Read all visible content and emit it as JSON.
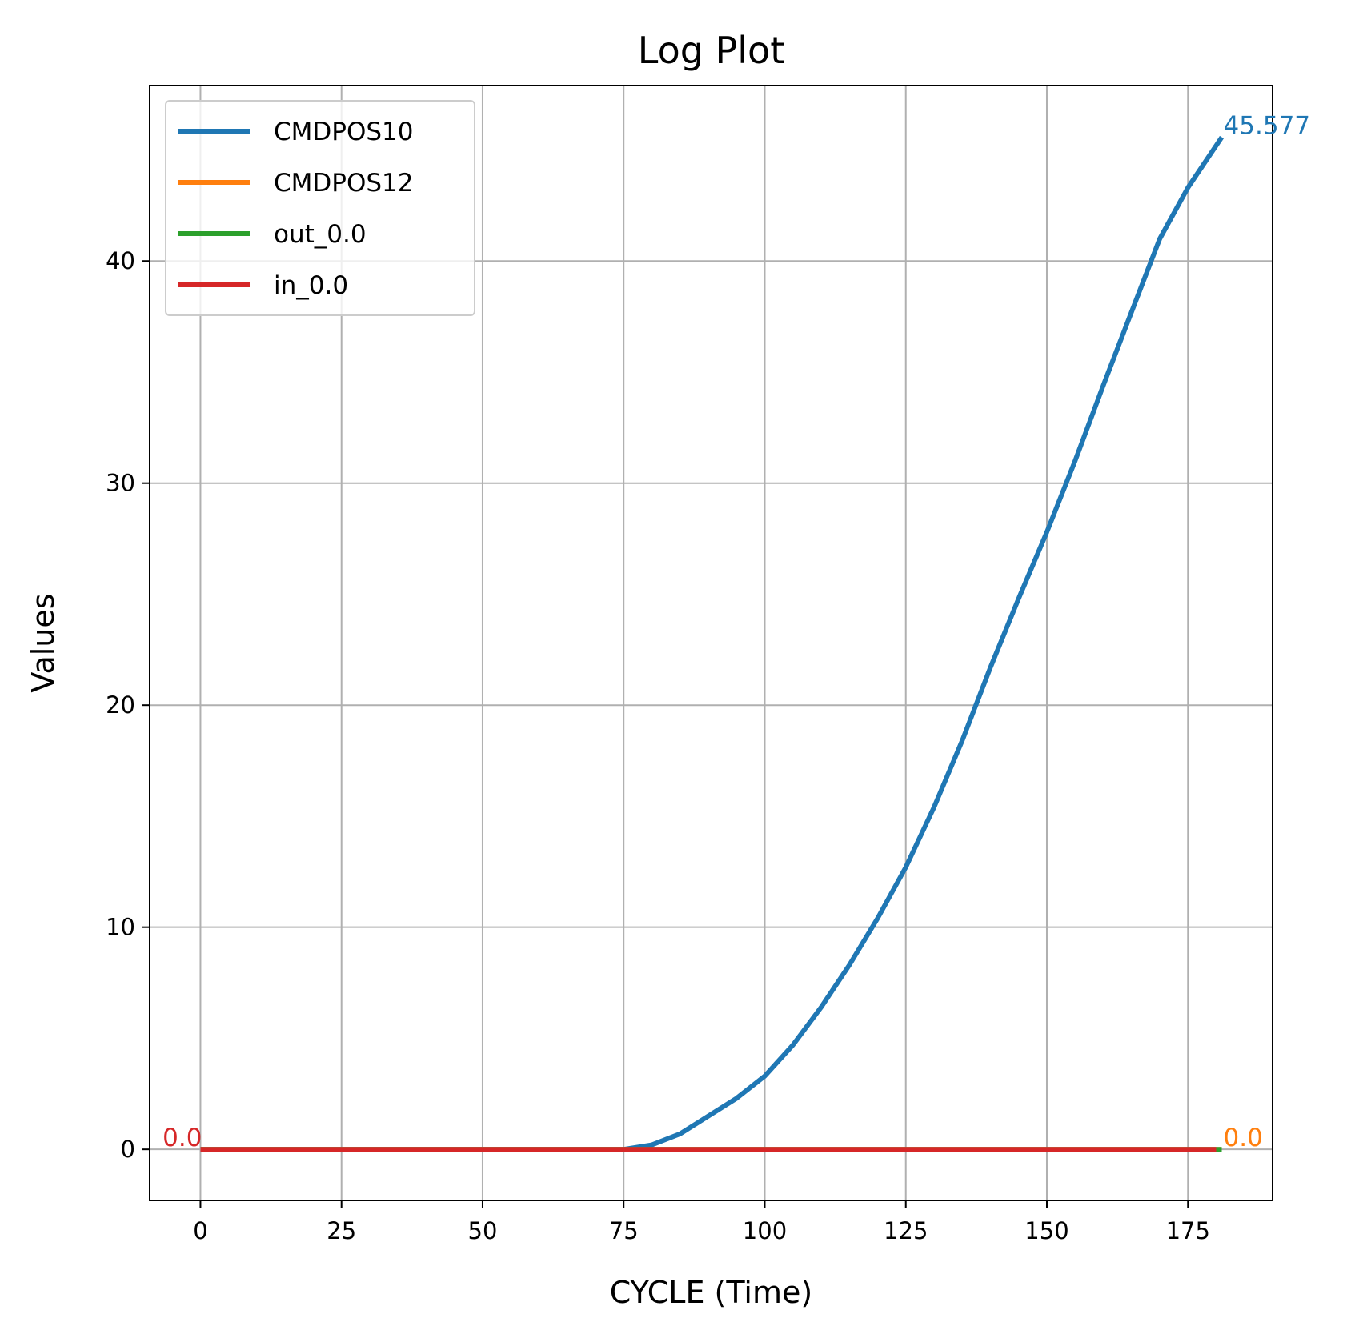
{
  "chart_data": {
    "type": "line",
    "title": "Log Plot",
    "xlabel": "CYCLE (Time)",
    "ylabel": "Values",
    "xlim": [
      -9,
      190
    ],
    "ylim": [
      -2.3,
      47.9
    ],
    "xticks": [
      0,
      25,
      50,
      75,
      100,
      125,
      150,
      175
    ],
    "yticks": [
      0,
      10,
      20,
      30,
      40
    ],
    "grid": true,
    "legend_position": "upper-left",
    "series": [
      {
        "name": "CMDPOS10",
        "color": "#1f77b4",
        "x": [
          0,
          25,
          50,
          75,
          80,
          85,
          90,
          95,
          100,
          105,
          110,
          115,
          120,
          125,
          130,
          135,
          140,
          145,
          150,
          155,
          160,
          165,
          170,
          175,
          181
        ],
        "y": [
          0,
          0,
          0,
          0,
          0.2,
          0.7,
          1.5,
          2.3,
          3.3,
          4.7,
          6.4,
          8.3,
          10.4,
          12.7,
          15.4,
          18.4,
          21.7,
          24.8,
          27.8,
          31.0,
          34.4,
          37.7,
          41.0,
          43.3,
          45.577
        ]
      },
      {
        "name": "CMDPOS12",
        "color": "#ff7f0e",
        "x": [
          0,
          181
        ],
        "y": [
          0,
          0
        ]
      },
      {
        "name": "out_0.0",
        "color": "#2ca02c",
        "x": [
          0,
          181
        ],
        "y": [
          0,
          0
        ]
      },
      {
        "name": "in_0.0",
        "color": "#d62728",
        "x": [
          0,
          180
        ],
        "y": [
          0,
          0
        ]
      }
    ],
    "annotations": [
      {
        "text": "45.577",
        "x": 181,
        "y": 45.577,
        "color": "#1f77b4",
        "anchor": "start"
      },
      {
        "text": "0.0",
        "x": 181,
        "y": 0,
        "color": "#ff7f0e",
        "anchor": "start"
      },
      {
        "text": "0.0",
        "x": 0,
        "y": 0,
        "color": "#d62728",
        "anchor": "end"
      }
    ]
  }
}
